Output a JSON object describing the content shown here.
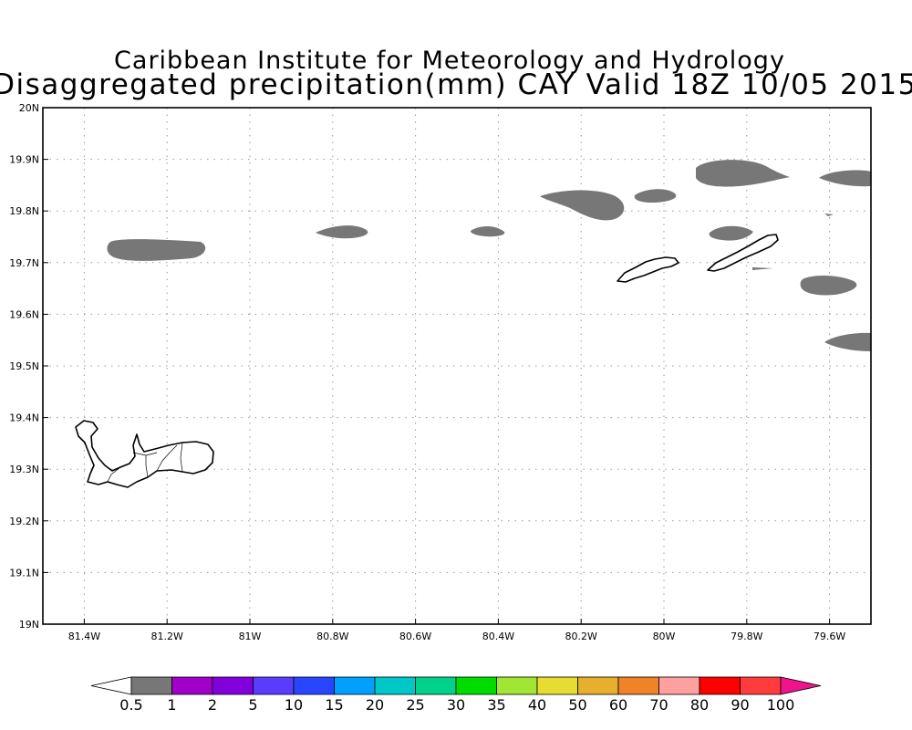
{
  "titles": {
    "line1": "Caribbean Institute for Meteorology and Hydrology",
    "line2": "Disaggregated precipitation(mm) CAY Valid 18Z 10/05 2015"
  },
  "map": {
    "lon_range": [
      -81.5,
      -79.5
    ],
    "lat_range": [
      19.0,
      20.0
    ],
    "x_tick_labels": [
      "81.4W",
      "81.2W",
      "81W",
      "80.8W",
      "80.6W",
      "80.4W",
      "80.2W",
      "80W",
      "79.8W",
      "79.6W"
    ],
    "x_tick_values": [
      -81.4,
      -81.2,
      -81.0,
      -80.8,
      -80.6,
      -80.4,
      -80.2,
      -80.0,
      -79.8,
      -79.6
    ],
    "y_tick_labels": [
      "19N",
      "19.1N",
      "19.2N",
      "19.3N",
      "19.4N",
      "19.5N",
      "19.6N",
      "19.7N",
      "19.8N",
      "19.9N",
      "20N"
    ],
    "y_tick_values": [
      19.0,
      19.1,
      19.2,
      19.3,
      19.4,
      19.5,
      19.6,
      19.7,
      19.8,
      19.9,
      20.0
    ],
    "grid": true,
    "precip_color": "#777777"
  },
  "colorbar": {
    "labels": [
      "0.5",
      "1",
      "2",
      "5",
      "10",
      "15",
      "20",
      "25",
      "30",
      "35",
      "40",
      "50",
      "60",
      "70",
      "80",
      "90",
      "100"
    ],
    "colors": [
      "#ffffff",
      "#777777",
      "#a000c8",
      "#8200dc",
      "#5a3cff",
      "#2846ff",
      "#00a0ff",
      "#00c8c8",
      "#00d28c",
      "#00dc00",
      "#a0e632",
      "#e6dc32",
      "#e6af2d",
      "#f08228",
      "#ffa0a0",
      "#ff0000",
      "#ff3c3c",
      "#f0148c"
    ]
  }
}
